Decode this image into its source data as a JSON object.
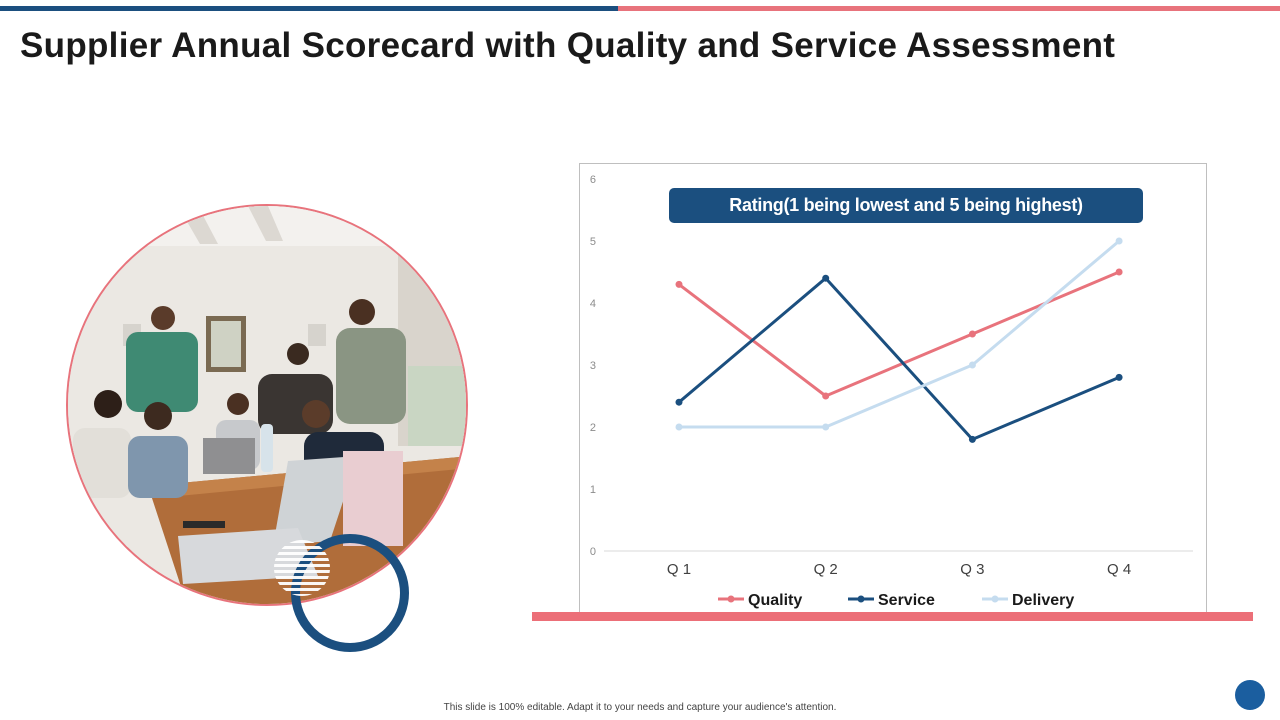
{
  "title": "Supplier Annual Scorecard with Quality and Service Assessment",
  "footer_note": "This slide is 100% editable. Adapt it to your needs and capture your audience's attention.",
  "colors": {
    "accent_blue": "#1b4f7f",
    "accent_red": "#e8737c"
  },
  "chart_data": {
    "type": "line",
    "title": "Rating(1 being lowest and 5 being highest)",
    "categories": [
      "Q 1",
      "Q 2",
      "Q 3",
      "Q 4"
    ],
    "ylim": [
      0,
      6
    ],
    "yticks": [
      "0",
      "1",
      "2",
      "3",
      "4",
      "5",
      "6"
    ],
    "grid": false,
    "legend": "bottom",
    "series": [
      {
        "name": "Quality",
        "color": "#e8737c",
        "values": [
          4.3,
          2.5,
          3.5,
          4.5
        ]
      },
      {
        "name": "Service",
        "color": "#1b4f7f",
        "values": [
          2.4,
          4.4,
          1.8,
          2.8
        ]
      },
      {
        "name": "Delivery",
        "color": "#c5dcef",
        "values": [
          2.0,
          2.0,
          3.0,
          5.0
        ]
      }
    ]
  }
}
